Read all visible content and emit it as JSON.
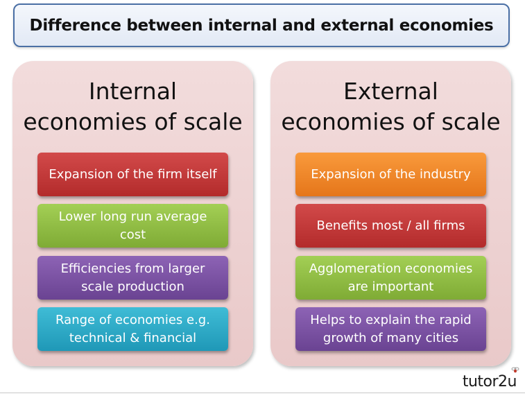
{
  "title": "Difference between internal and external economies",
  "left_panel": {
    "heading": "Internal\neconomies of scale",
    "boxes": [
      {
        "text": "Expansion of the firm itself",
        "color": "#c03636"
      },
      {
        "text": "Lower long run average cost",
        "color": "#8fbd44"
      },
      {
        "text": "Efficiencies from larger scale production",
        "color": "#7b52a4"
      },
      {
        "text": "Range of economies e.g. technical & financial",
        "color": "#2daac7"
      }
    ]
  },
  "right_panel": {
    "heading": "External\neconomies of scale",
    "boxes": [
      {
        "text": "Expansion of the industry",
        "color": "#f08a2c"
      },
      {
        "text": "Benefits most / all firms",
        "color": "#c03636"
      },
      {
        "text": "Agglomeration economies are important",
        "color": "#8fbd44"
      },
      {
        "text": "Helps to explain the rapid growth of many cities",
        "color": "#7b52a4"
      }
    ]
  },
  "logo": "tutor2u",
  "logo_icon": "bee-icon"
}
